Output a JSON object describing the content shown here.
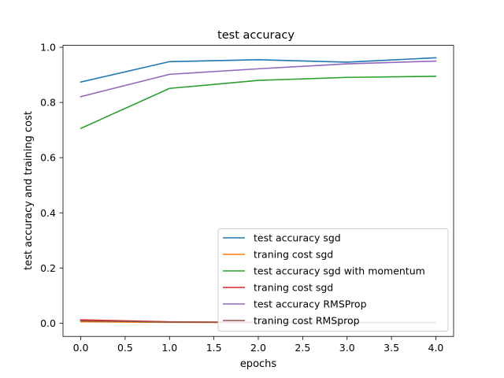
{
  "chart_data": {
    "type": "line",
    "title": "test accuracy",
    "xlabel": "epochs",
    "ylabel": "test accuracy and training cost",
    "x": [
      0,
      1,
      2,
      3,
      4
    ],
    "xlim": [
      -0.2,
      4.2
    ],
    "ylim": [
      -0.048,
      1.007
    ],
    "xticks": [
      0.0,
      0.5,
      1.0,
      1.5,
      2.0,
      2.5,
      3.0,
      3.5,
      4.0
    ],
    "xtick_labels": [
      "0.0",
      "0.5",
      "1.0",
      "1.5",
      "2.0",
      "2.5",
      "3.0",
      "3.5",
      "4.0"
    ],
    "yticks": [
      0.0,
      0.2,
      0.4,
      0.6,
      0.8,
      1.0
    ],
    "ytick_labels": [
      "0.0",
      "0.2",
      "0.4",
      "0.6",
      "0.8",
      "1.0"
    ],
    "grid": false,
    "legend_position": "lower-right",
    "series": [
      {
        "name": "test accuracy sgd",
        "color": "#1f77b4",
        "values": [
          0.874,
          0.948,
          0.955,
          0.946,
          0.962
        ]
      },
      {
        "name": "traning cost sgd",
        "color": "#ff7f0e",
        "values": [
          0.005,
          0.003,
          0.002,
          0.002,
          0.002
        ]
      },
      {
        "name": "test accuracy sgd with momentum",
        "color": "#2ca02c",
        "values": [
          0.706,
          0.851,
          0.88,
          0.891,
          0.895
        ]
      },
      {
        "name": "traning cost sgd",
        "color": "#d62728",
        "values": [
          0.012,
          0.005,
          0.003,
          0.002,
          0.002
        ]
      },
      {
        "name": "test accuracy RMSProp",
        "color": "#9467bd",
        "values": [
          0.821,
          0.902,
          0.922,
          0.94,
          0.95
        ]
      },
      {
        "name": "traning cost RMSprop",
        "color": "#8c564b",
        "values": [
          0.008,
          0.004,
          0.003,
          0.002,
          0.002
        ]
      }
    ]
  }
}
